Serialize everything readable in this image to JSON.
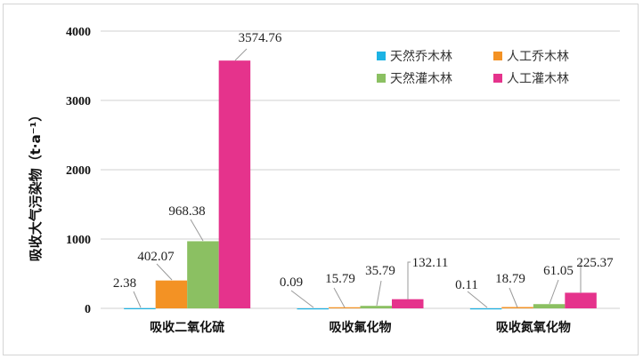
{
  "chart_data": {
    "type": "bar",
    "title": "",
    "xlabel": "",
    "ylabel": "吸收大气污染物（t·a⁻¹）",
    "ylim": [
      0,
      4000
    ],
    "yticks": [
      "0",
      "1000",
      "2000",
      "3000",
      "4000"
    ],
    "grid": true,
    "legend_position": "top-right",
    "categories": [
      "吸收二氧化硫",
      "吸收氟化物",
      "吸收氮氧化物"
    ],
    "series": [
      {
        "name": "天然乔木林",
        "color": "#1db3e4",
        "values": [
          2.38,
          0.09,
          0.11
        ],
        "labels": [
          "2.38",
          "0.09",
          "0.11"
        ]
      },
      {
        "name": "人工乔木林",
        "color": "#f39224",
        "values": [
          402.07,
          15.79,
          18.79
        ],
        "labels": [
          "402.07",
          "15.79",
          "18.79"
        ]
      },
      {
        "name": "天然灌木林",
        "color": "#8bc062",
        "values": [
          968.38,
          35.79,
          61.05
        ],
        "labels": [
          "968.38",
          "35.79",
          "61.05"
        ]
      },
      {
        "name": "人工灌木林",
        "color": "#e5338c",
        "values": [
          3574.76,
          132.11,
          225.37
        ],
        "labels": [
          "3574.76",
          "132.11",
          "225.37"
        ]
      }
    ]
  }
}
